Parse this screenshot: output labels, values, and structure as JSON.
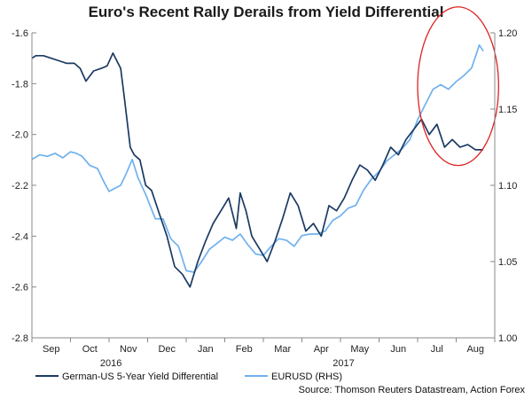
{
  "chart_data": {
    "type": "line",
    "title": "Euro's Recent Rally Derails from Yield Differential",
    "source": "Source: Thomson Reuters Datastream, Action Forex",
    "left_axis": {
      "range": [
        -2.8,
        -1.6
      ],
      "ticks": [
        "-1.6",
        "-1.8",
        "-2.0",
        "-2.2",
        "-2.4",
        "-2.6",
        "-2.8"
      ],
      "values": [
        -1.6,
        -1.8,
        -2.0,
        -2.2,
        -2.4,
        -2.6,
        -2.8
      ]
    },
    "right_axis": {
      "range": [
        1.0,
        1.2
      ],
      "ticks": [
        "1.20",
        "1.15",
        "1.10",
        "1.05",
        "1.00"
      ],
      "values": [
        1.2,
        1.15,
        1.1,
        1.05,
        1.0
      ]
    },
    "x_range": [
      0,
      12
    ],
    "months": [
      "Sep",
      "Oct",
      "Nov",
      "Dec",
      "Jan",
      "Feb",
      "Mar",
      "Apr",
      "May",
      "Jun",
      "Jul",
      "Aug"
    ],
    "years": [
      {
        "label": "2016",
        "at": 2.05
      },
      {
        "label": "2017",
        "at": 8.08
      }
    ],
    "annotation": {
      "type": "ellipse",
      "cx": 11.05,
      "cy": 1.165,
      "rx": 1.05,
      "ry": 0.052,
      "color": "#dd2222"
    },
    "series": [
      {
        "name": "German-US 5-Year Yield Differential",
        "axis": "left",
        "color": "#1b3a63",
        "x": [
          0.0,
          0.1,
          0.3,
          0.5,
          0.7,
          0.9,
          1.1,
          1.25,
          1.4,
          1.6,
          1.8,
          1.95,
          2.1,
          2.3,
          2.4,
          2.55,
          2.65,
          2.8,
          2.95,
          3.1,
          3.3,
          3.5,
          3.7,
          3.9,
          4.1,
          4.3,
          4.5,
          4.7,
          4.9,
          5.1,
          5.3,
          5.4,
          5.55,
          5.7,
          5.9,
          6.1,
          6.3,
          6.5,
          6.7,
          6.9,
          7.1,
          7.3,
          7.5,
          7.7,
          7.9,
          8.1,
          8.3,
          8.5,
          8.7,
          8.9,
          9.1,
          9.3,
          9.5,
          9.7,
          9.9,
          10.1,
          10.3,
          10.5,
          10.7,
          10.9,
          11.1,
          11.3,
          11.5,
          11.7
        ],
        "y": [
          -1.7,
          -1.69,
          -1.69,
          -1.7,
          -1.71,
          -1.72,
          -1.72,
          -1.74,
          -1.79,
          -1.75,
          -1.74,
          -1.73,
          -1.68,
          -1.74,
          -1.86,
          -2.05,
          -2.08,
          -2.1,
          -2.2,
          -2.22,
          -2.31,
          -2.4,
          -2.52,
          -2.55,
          -2.6,
          -2.5,
          -2.42,
          -2.35,
          -2.3,
          -2.25,
          -2.37,
          -2.23,
          -2.3,
          -2.4,
          -2.45,
          -2.5,
          -2.42,
          -2.33,
          -2.23,
          -2.28,
          -2.38,
          -2.35,
          -2.4,
          -2.28,
          -2.3,
          -2.25,
          -2.18,
          -2.12,
          -2.14,
          -2.18,
          -2.12,
          -2.05,
          -2.08,
          -2.02,
          -1.98,
          -1.94,
          -2.0,
          -1.96,
          -2.05,
          -2.02,
          -2.05,
          -2.04,
          -2.06,
          -2.06
        ]
      },
      {
        "name": "EURUSD (RHS)",
        "axis": "right",
        "color": "#6fb1ee",
        "x": [
          0.0,
          0.2,
          0.4,
          0.6,
          0.8,
          1.0,
          1.15,
          1.3,
          1.5,
          1.7,
          1.85,
          2.0,
          2.15,
          2.3,
          2.45,
          2.6,
          2.75,
          2.95,
          3.2,
          3.4,
          3.6,
          3.8,
          4.0,
          4.2,
          4.4,
          4.6,
          4.8,
          5.0,
          5.2,
          5.4,
          5.6,
          5.8,
          6.0,
          6.2,
          6.4,
          6.6,
          6.8,
          7.0,
          7.2,
          7.4,
          7.6,
          7.8,
          8.0,
          8.2,
          8.4,
          8.6,
          8.8,
          9.0,
          9.2,
          9.4,
          9.6,
          9.8,
          10.0,
          10.2,
          10.4,
          10.6,
          10.8,
          11.0,
          11.2,
          11.4,
          11.6,
          11.7
        ],
        "y": [
          1.117,
          1.12,
          1.119,
          1.121,
          1.118,
          1.122,
          1.121,
          1.119,
          1.113,
          1.111,
          1.103,
          1.096,
          1.098,
          1.1,
          1.108,
          1.117,
          1.105,
          1.094,
          1.078,
          1.078,
          1.065,
          1.06,
          1.044,
          1.043,
          1.05,
          1.058,
          1.062,
          1.066,
          1.064,
          1.068,
          1.061,
          1.055,
          1.054,
          1.06,
          1.065,
          1.064,
          1.06,
          1.067,
          1.068,
          1.068,
          1.07,
          1.077,
          1.08,
          1.085,
          1.087,
          1.097,
          1.104,
          1.109,
          1.116,
          1.12,
          1.124,
          1.13,
          1.143,
          1.153,
          1.163,
          1.166,
          1.163,
          1.168,
          1.172,
          1.177,
          1.192,
          1.188
        ]
      }
    ]
  }
}
